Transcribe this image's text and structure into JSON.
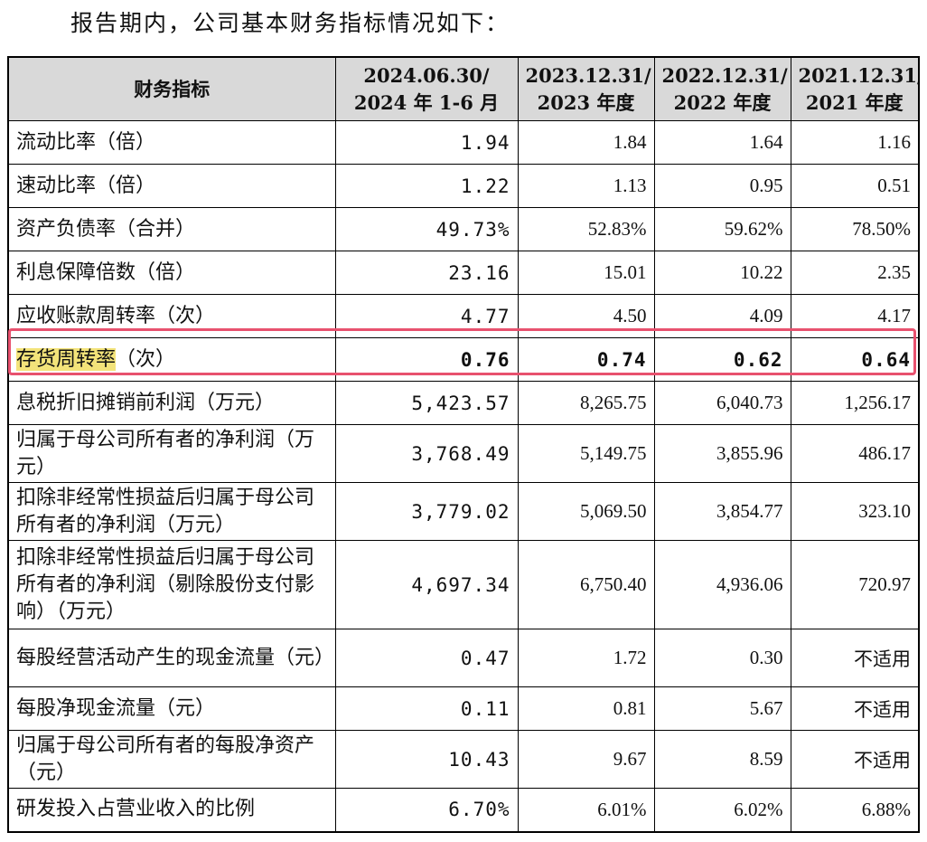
{
  "intro": "报告期内，公司基本财务指标情况如下：",
  "table": {
    "headers": [
      "财务指标",
      "2024.06.30/\n2024 年 1-6 月",
      "2023.12.31/\n2023 年度",
      "2022.12.31/\n2022 年度",
      "2021.12.31/\n2021 年度"
    ],
    "rows": [
      {
        "label": "流动比率（倍）",
        "values": [
          "1.94",
          "1.84",
          "1.64",
          "1.16"
        ]
      },
      {
        "label": "速动比率（倍）",
        "values": [
          "1.22",
          "1.13",
          "0.95",
          "0.51"
        ]
      },
      {
        "label": "资产负债率（合并）",
        "values": [
          "49.73%",
          "52.83%",
          "59.62%",
          "78.50%"
        ]
      },
      {
        "label": "利息保障倍数（倍）",
        "values": [
          "23.16",
          "15.01",
          "10.22",
          "2.35"
        ]
      },
      {
        "label": "应收账款周转率（次）",
        "values": [
          "4.77",
          "4.50",
          "4.09",
          "4.17"
        ]
      },
      {
        "label_highlight": "存货周转率",
        "label_rest": "（次）",
        "values": [
          "0.76",
          "0.74",
          "0.62",
          "0.64"
        ]
      },
      {
        "label": "息税折旧摊销前利润（万元）",
        "values": [
          "5,423.57",
          "8,265.75",
          "6,040.73",
          "1,256.17"
        ]
      },
      {
        "label": "归属于母公司所有者的净利润（万元）",
        "values": [
          "3,768.49",
          "5,149.75",
          "3,855.96",
          "486.17"
        ]
      },
      {
        "label": "扣除非经常性损益后归属于母公司所有者的净利润（万元）",
        "values": [
          "3,779.02",
          "5,069.50",
          "3,854.77",
          "323.10"
        ]
      },
      {
        "label": "扣除非经常性损益后归属于母公司所有者的净利润（剔除股份支付影响）（万元）",
        "values": [
          "4,697.34",
          "6,750.40",
          "4,936.06",
          "720.97"
        ]
      },
      {
        "label": "每股经营活动产生的现金流量（元）",
        "values": [
          "0.47",
          "1.72",
          "0.30",
          "不适用"
        ]
      },
      {
        "label": "每股净现金流量（元）",
        "values": [
          "0.11",
          "0.81",
          "5.67",
          "不适用"
        ]
      },
      {
        "label": "归属于母公司所有者的每股净资产（元）",
        "values": [
          "10.43",
          "9.67",
          "8.59",
          "不适用"
        ]
      },
      {
        "label": "研发投入占营业收入的比例",
        "values": [
          "6.70%",
          "6.01%",
          "6.02%",
          "6.88%"
        ]
      }
    ]
  }
}
